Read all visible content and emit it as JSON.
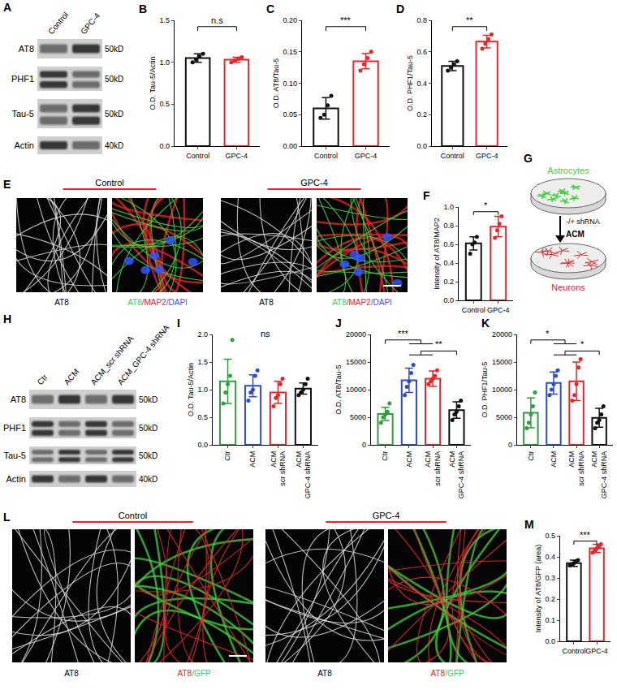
{
  "chart_data": [
    {
      "panel": "B",
      "type": "bar",
      "categories": [
        "Control",
        "GPC-4"
      ],
      "values": [
        1.05,
        1.03
      ],
      "errors": [
        0.05,
        0.03
      ],
      "points": [
        [
          1.0,
          1.03,
          1.07,
          1.1
        ],
        [
          1.0,
          1.02,
          1.04,
          1.06
        ]
      ],
      "colors": [
        "#111111",
        "#e8262a"
      ],
      "y_label": "O.D. Tau-5/Actin",
      "ylim": [
        0,
        1.5
      ],
      "yticks": [
        {
          "value": 0,
          "label": "0.0"
        },
        {
          "value": 0.5,
          "label": "0.5"
        },
        {
          "value": 1,
          "label": "1.0"
        },
        {
          "value": 1.5,
          "label": "1.5"
        }
      ],
      "significance": [
        {
          "from": [
            0
          ],
          "to": [
            1
          ],
          "label": "n.s"
        }
      ]
    },
    {
      "panel": "C",
      "type": "bar",
      "categories": [
        "Control",
        "GPC-4"
      ],
      "values": [
        0.06,
        0.135
      ],
      "errors": [
        0.017,
        0.012
      ],
      "points": [
        [
          0.045,
          0.05,
          0.065,
          0.08
        ],
        [
          0.12,
          0.13,
          0.14,
          0.15
        ]
      ],
      "colors": [
        "#111111",
        "#e8262a"
      ],
      "y_label": "O.D. AT8/Tau-5",
      "ylim": [
        0,
        0.2
      ],
      "yticks": [
        {
          "value": 0,
          "label": "0.00"
        },
        {
          "value": 0.05,
          "label": "0.05"
        },
        {
          "value": 0.1,
          "label": "0.10"
        },
        {
          "value": 0.15,
          "label": "0.15"
        },
        {
          "value": 0.2,
          "label": "0.20"
        }
      ],
      "significance": [
        {
          "from": [
            0
          ],
          "to": [
            1
          ],
          "label": "***"
        }
      ]
    },
    {
      "panel": "D",
      "type": "bar",
      "categories": [
        "Control",
        "GPC-4"
      ],
      "values": [
        0.51,
        0.665
      ],
      "errors": [
        0.03,
        0.04
      ],
      "points": [
        [
          0.48,
          0.5,
          0.52,
          0.54
        ],
        [
          0.62,
          0.65,
          0.68,
          0.71
        ]
      ],
      "colors": [
        "#111111",
        "#e8262a"
      ],
      "y_label": "O.D. PHF1/Tau-5",
      "ylim": [
        0,
        0.8
      ],
      "yticks": [
        {
          "value": 0,
          "label": "0.0"
        },
        {
          "value": 0.2,
          "label": "0.2"
        },
        {
          "value": 0.4,
          "label": "0.4"
        },
        {
          "value": 0.6,
          "label": "0.6"
        },
        {
          "value": 0.8,
          "label": "0.8"
        }
      ],
      "significance": [
        {
          "from": [
            0
          ],
          "to": [
            1
          ],
          "label": "**"
        }
      ]
    },
    {
      "panel": "F",
      "type": "bar",
      "categories": [
        "Control",
        "GPC-4"
      ],
      "values": [
        0.61,
        0.79
      ],
      "errors": [
        0.07,
        0.11
      ],
      "points": [
        [
          0.5,
          0.6,
          0.62,
          0.68
        ],
        [
          0.67,
          0.75,
          0.82,
          0.9
        ]
      ],
      "colors": [
        "#111111",
        "#e8262a"
      ],
      "y_label": "Intensity of AT8/MAP2",
      "ylim": [
        0,
        1
      ],
      "yticks": [
        {
          "value": 0,
          "label": "0.0"
        },
        {
          "value": 0.2,
          "label": "0.2"
        },
        {
          "value": 0.4,
          "label": "0.4"
        },
        {
          "value": 0.6,
          "label": "0.6"
        },
        {
          "value": 0.8,
          "label": "0.8"
        },
        {
          "value": 1,
          "label": "1.0"
        }
      ],
      "significance": [
        {
          "from": [
            0
          ],
          "to": [
            1
          ],
          "label": "*"
        }
      ]
    },
    {
      "panel": "I",
      "type": "bar",
      "categories": [
        "Ctr",
        "ACM",
        "ACM\nscr shRNA",
        "ACM\nGPC-4 shRNA"
      ],
      "values": [
        1.15,
        1.07,
        0.95,
        1.02
      ],
      "errors": [
        0.4,
        0.2,
        0.2,
        0.1
      ],
      "points": [
        [
          0.75,
          0.95,
          1.1,
          1.25,
          1.9
        ],
        [
          0.8,
          0.95,
          1.0,
          1.25,
          1.35
        ],
        [
          0.7,
          0.85,
          0.9,
          1.1,
          1.2
        ],
        [
          0.9,
          0.95,
          1.0,
          1.1,
          1.2
        ]
      ],
      "colors": [
        "#2e9e3e",
        "#2a4bd7",
        "#e8262a",
        "#111111"
      ],
      "y_label": "O.D. Tau-5/Actin",
      "ylim": [
        0,
        2
      ],
      "yticks": [
        {
          "value": 0,
          "label": "0.0"
        },
        {
          "value": 0.5,
          "label": "0.5"
        },
        {
          "value": 1,
          "label": "1.0"
        },
        {
          "value": 1.5,
          "label": "1.5"
        },
        {
          "value": 2,
          "label": "2.0"
        }
      ],
      "significance": [
        {
          "label": "ns"
        }
      ]
    },
    {
      "panel": "J",
      "type": "bar",
      "categories": [
        "Ctr",
        "ACM",
        "ACM\nscr shRNA",
        "ACM\nGPC-4 shRNA"
      ],
      "values": [
        5600,
        11700,
        12000,
        6300
      ],
      "errors": [
        1200,
        2200,
        1400,
        1500
      ],
      "points": [
        [
          4000,
          5000,
          5500,
          6000,
          7500
        ],
        [
          9000,
          10500,
          11500,
          13000,
          14500
        ],
        [
          11000,
          11500,
          12000,
          12500,
          13500
        ],
        [
          4500,
          5500,
          6000,
          7000,
          8000
        ]
      ],
      "colors": [
        "#2e9e3e",
        "#2a4bd7",
        "#e8262a",
        "#111111"
      ],
      "y_label": "O.D. AT8/Tau-5",
      "ylim": [
        0,
        20000
      ],
      "yticks": [
        0,
        5000,
        10000,
        15000,
        20000
      ],
      "significance": [
        {
          "from": [
            0
          ],
          "to": [
            1,
            2
          ],
          "label": "***"
        },
        {
          "from": [
            1,
            2
          ],
          "to": [
            3
          ],
          "label": "**"
        }
      ]
    },
    {
      "panel": "K",
      "type": "bar",
      "categories": [
        "Ctr",
        "ACM",
        "ACM\nscr shRNA",
        "ACM\nGPC-4 shRNA"
      ],
      "values": [
        5800,
        11200,
        11500,
        4900
      ],
      "errors": [
        2700,
        2000,
        3500,
        1700
      ],
      "points": [
        [
          3000,
          4000,
          5500,
          7000,
          9500
        ],
        [
          9000,
          10000,
          11000,
          12500,
          13500
        ],
        [
          8000,
          9000,
          11000,
          14000,
          15500
        ],
        [
          3000,
          4000,
          4500,
          5500,
          7000
        ]
      ],
      "colors": [
        "#2e9e3e",
        "#2a4bd7",
        "#e8262a",
        "#111111"
      ],
      "y_label": "O.D. PHF1/Tau-5",
      "ylim": [
        0,
        20000
      ],
      "yticks": [
        0,
        5000,
        10000,
        15000,
        20000
      ],
      "significance": [
        {
          "from": [
            0
          ],
          "to": [
            1,
            2
          ],
          "label": "*"
        },
        {
          "from": [
            1,
            2
          ],
          "to": [
            3
          ],
          "label": "*"
        }
      ]
    },
    {
      "panel": "M",
      "type": "bar",
      "categories": [
        "Control",
        "GPC-4"
      ],
      "values": [
        0.37,
        0.44
      ],
      "errors": [
        0.015,
        0.02
      ],
      "points": [
        [
          0.36,
          0.365,
          0.37,
          0.38,
          0.385
        ],
        [
          0.42,
          0.43,
          0.44,
          0.45,
          0.46
        ]
      ],
      "colors": [
        "#111111",
        "#e8262a"
      ],
      "y_label": "Intensity of AT8/GFP (area)",
      "ylim": [
        0,
        0.5
      ],
      "yticks": [
        {
          "value": 0,
          "label": "0.0"
        },
        {
          "value": 0.1,
          "label": "0.1"
        },
        {
          "value": 0.2,
          "label": "0.2"
        },
        {
          "value": 0.3,
          "label": "0.3"
        },
        {
          "value": 0.4,
          "label": "0.4"
        },
        {
          "value": 0.5,
          "label": "0.5"
        }
      ],
      "significance": [
        {
          "from": [
            0
          ],
          "to": [
            1
          ],
          "label": "***"
        }
      ]
    }
  ],
  "blots": [
    {
      "panel": "A",
      "lanes": [
        "Control",
        "GPC-4"
      ],
      "rows": [
        {
          "label": "AT8",
          "mw": "50kD"
        },
        {
          "label": "PHF1",
          "mw": "50kD"
        },
        {
          "label": "Tau-5",
          "mw": "50kD"
        },
        {
          "label": "Actin",
          "mw": "40kD"
        }
      ]
    },
    {
      "panel": "H",
      "lanes": [
        "Ctr",
        "ACM",
        "ACM_scr shRNA",
        "ACM_GPC-4 shRNA"
      ],
      "rows": [
        {
          "label": "AT8",
          "mw": "50kD"
        },
        {
          "label": "PHF1",
          "mw": "50kD"
        },
        {
          "label": "Tau-5",
          "mw": "50kD"
        },
        {
          "label": "Actin",
          "mw": "40kD"
        }
      ]
    }
  ],
  "micrographs": [
    {
      "panel": "E",
      "groups": [
        {
          "header": "Control",
          "captions": [
            [
              {
                "text": "AT8"
              }
            ],
            [
              {
                "text": "AT8",
                "color": "#3fd13f"
              },
              {
                "text": "/MAP2",
                "color": "#e8262a"
              },
              {
                "text": "/DAPI",
                "color": "#3355ff"
              }
            ]
          ]
        },
        {
          "header": "GPC-4",
          "captions": [
            [
              {
                "text": "AT8"
              }
            ],
            [
              {
                "text": "AT8",
                "color": "#3fd13f"
              },
              {
                "text": "/MAP2",
                "color": "#e8262a"
              },
              {
                "text": "/DAPI",
                "color": "#3355ff"
              }
            ]
          ]
        }
      ]
    },
    {
      "panel": "L",
      "groups": [
        {
          "header": "Control",
          "captions": [
            [
              {
                "text": "AT8"
              }
            ],
            [
              {
                "text": "AT8",
                "color": "#e8262a"
              },
              {
                "text": "/GFP",
                "color": "#3fd13f"
              }
            ]
          ]
        },
        {
          "header": "GPC-4",
          "captions": [
            [
              {
                "text": "AT8"
              }
            ],
            [
              {
                "text": "AT8",
                "color": "#e8262a"
              },
              {
                "text": "/GFP",
                "color": "#3fd13f"
              }
            ]
          ]
        }
      ]
    }
  ],
  "diagram": {
    "panel": "G",
    "top": "Astrocytes",
    "top_color": "#3fd13f",
    "arrow_labels": [
      "-/+ shRNA",
      "ACM"
    ],
    "bottom": "Neurons",
    "bottom_color": "#e8262a"
  }
}
